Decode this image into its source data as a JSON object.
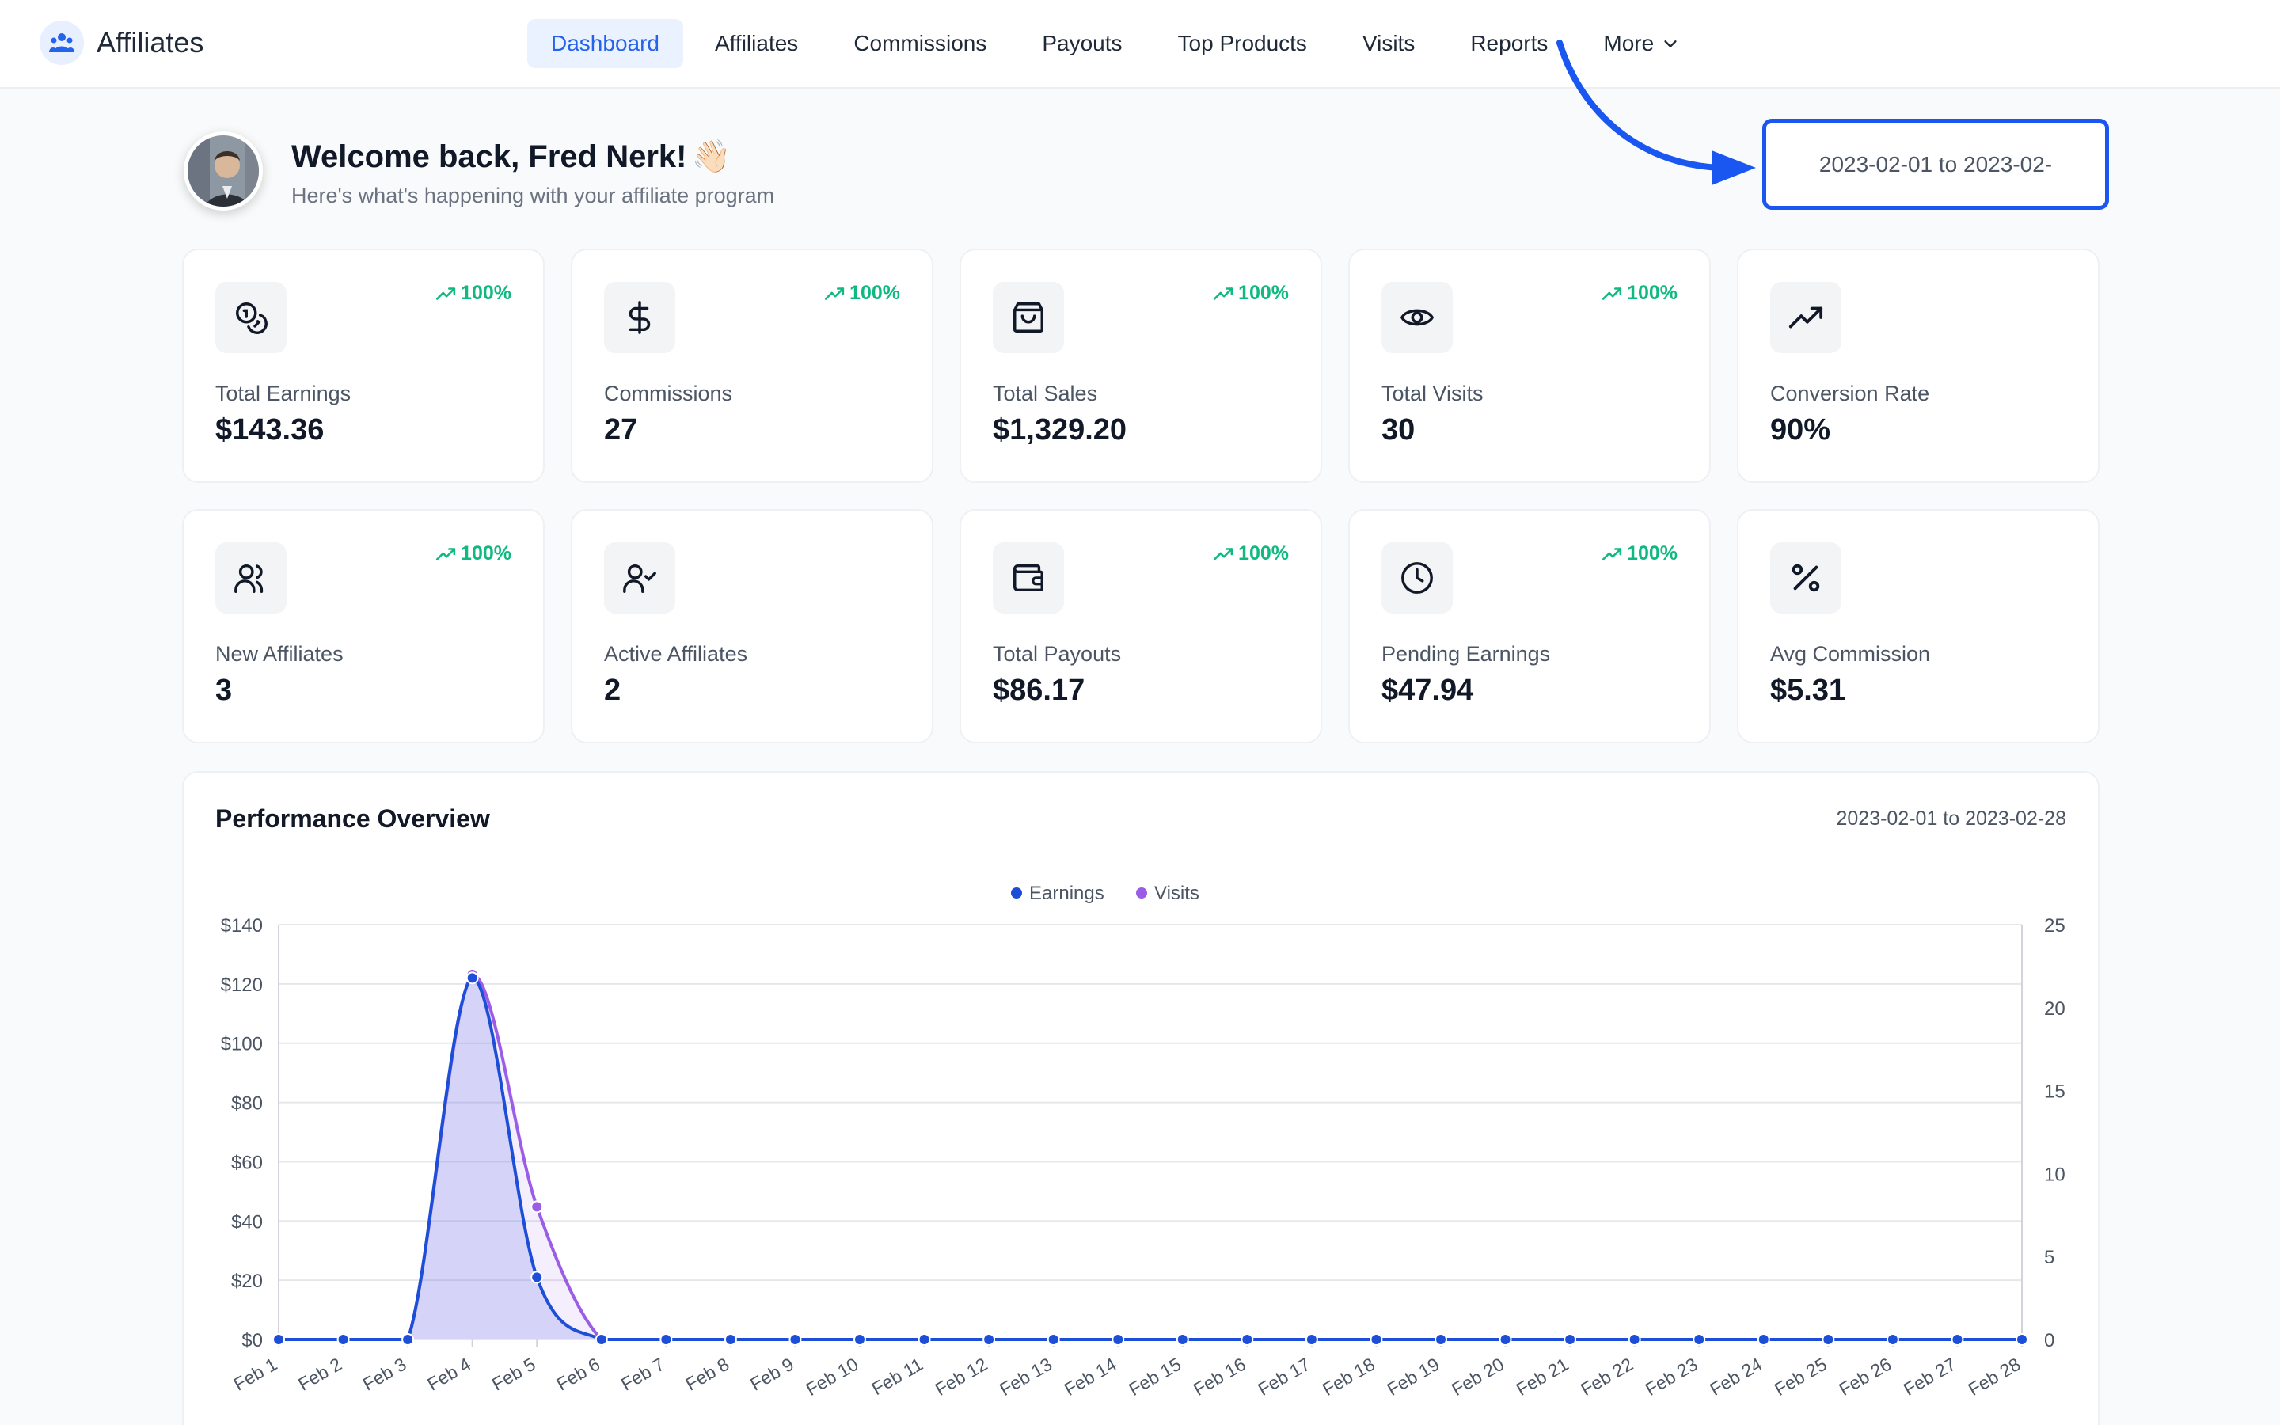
{
  "app": {
    "name": "Affiliates"
  },
  "nav": [
    {
      "label": "Dashboard",
      "active": true
    },
    {
      "label": "Affiliates"
    },
    {
      "label": "Commissions"
    },
    {
      "label": "Payouts"
    },
    {
      "label": "Top Products"
    },
    {
      "label": "Visits"
    },
    {
      "label": "Reports"
    },
    {
      "label": "More"
    }
  ],
  "welcome": {
    "title": "Welcome back, Fred Nerk!",
    "emoji": "👋🏻",
    "subtitle": "Here's what's happening with your affiliate program"
  },
  "date_filter": {
    "value": "2023-02-01 to 2023-02-"
  },
  "stats": [
    {
      "label": "Total Earnings",
      "value": "$143.36",
      "trend": "100%",
      "icon": "coins-icon"
    },
    {
      "label": "Commissions",
      "value": "27",
      "trend": "100%",
      "icon": "dollar-icon"
    },
    {
      "label": "Total Sales",
      "value": "$1,329.20",
      "trend": "100%",
      "icon": "shopping-bag-icon"
    },
    {
      "label": "Total Visits",
      "value": "30",
      "trend": "100%",
      "icon": "eye-icon"
    },
    {
      "label": "Conversion Rate",
      "value": "90%",
      "trend": "",
      "icon": "trending-up-icon"
    },
    {
      "label": "New Affiliates",
      "value": "3",
      "trend": "100%",
      "icon": "users-icon"
    },
    {
      "label": "Active Affiliates",
      "value": "2",
      "trend": "",
      "icon": "user-check-icon"
    },
    {
      "label": "Total Payouts",
      "value": "$86.17",
      "trend": "100%",
      "icon": "wallet-icon"
    },
    {
      "label": "Pending Earnings",
      "value": "$47.94",
      "trend": "100%",
      "icon": "clock-icon"
    },
    {
      "label": "Avg Commission",
      "value": "$5.31",
      "trend": "",
      "icon": "percent-icon"
    }
  ],
  "performance": {
    "title": "Performance Overview",
    "range": "2023-02-01 to 2023-02-28"
  },
  "colors": {
    "accent": "#2563eb",
    "earnings": "#1d4ed8",
    "visits": "#9b5de5",
    "trend": "#10b981",
    "annotation": "#1a56f0"
  },
  "chart_data": {
    "type": "line",
    "categories": [
      "Feb 1",
      "Feb 2",
      "Feb 3",
      "Feb 4",
      "Feb 5",
      "Feb 6",
      "Feb 7",
      "Feb 8",
      "Feb 9",
      "Feb 10",
      "Feb 11",
      "Feb 12",
      "Feb 13",
      "Feb 14",
      "Feb 15",
      "Feb 16",
      "Feb 17",
      "Feb 18",
      "Feb 19",
      "Feb 20",
      "Feb 21",
      "Feb 22",
      "Feb 23",
      "Feb 24",
      "Feb 25",
      "Feb 26",
      "Feb 27",
      "Feb 28"
    ],
    "series": [
      {
        "name": "Earnings",
        "axis": "left",
        "values": [
          0,
          0,
          0,
          122,
          21,
          0,
          0,
          0,
          0,
          0,
          0,
          0,
          0,
          0,
          0,
          0,
          0,
          0,
          0,
          0,
          0,
          0,
          0,
          0,
          0,
          0,
          0,
          0
        ]
      },
      {
        "name": "Visits",
        "axis": "right",
        "values": [
          0,
          0,
          0,
          22,
          8,
          0,
          0,
          0,
          0,
          0,
          0,
          0,
          0,
          0,
          0,
          0,
          0,
          0,
          0,
          0,
          0,
          0,
          0,
          0,
          0,
          0,
          0,
          0
        ]
      }
    ],
    "y_left": {
      "ticks": [
        "$0",
        "$20",
        "$40",
        "$60",
        "$80",
        "$100",
        "$120",
        "$140"
      ],
      "range": [
        0,
        140
      ]
    },
    "y_right": {
      "ticks": [
        "0",
        "5",
        "10",
        "15",
        "20",
        "25"
      ],
      "range": [
        0,
        25
      ]
    },
    "legend": "top-center",
    "grid": true
  }
}
